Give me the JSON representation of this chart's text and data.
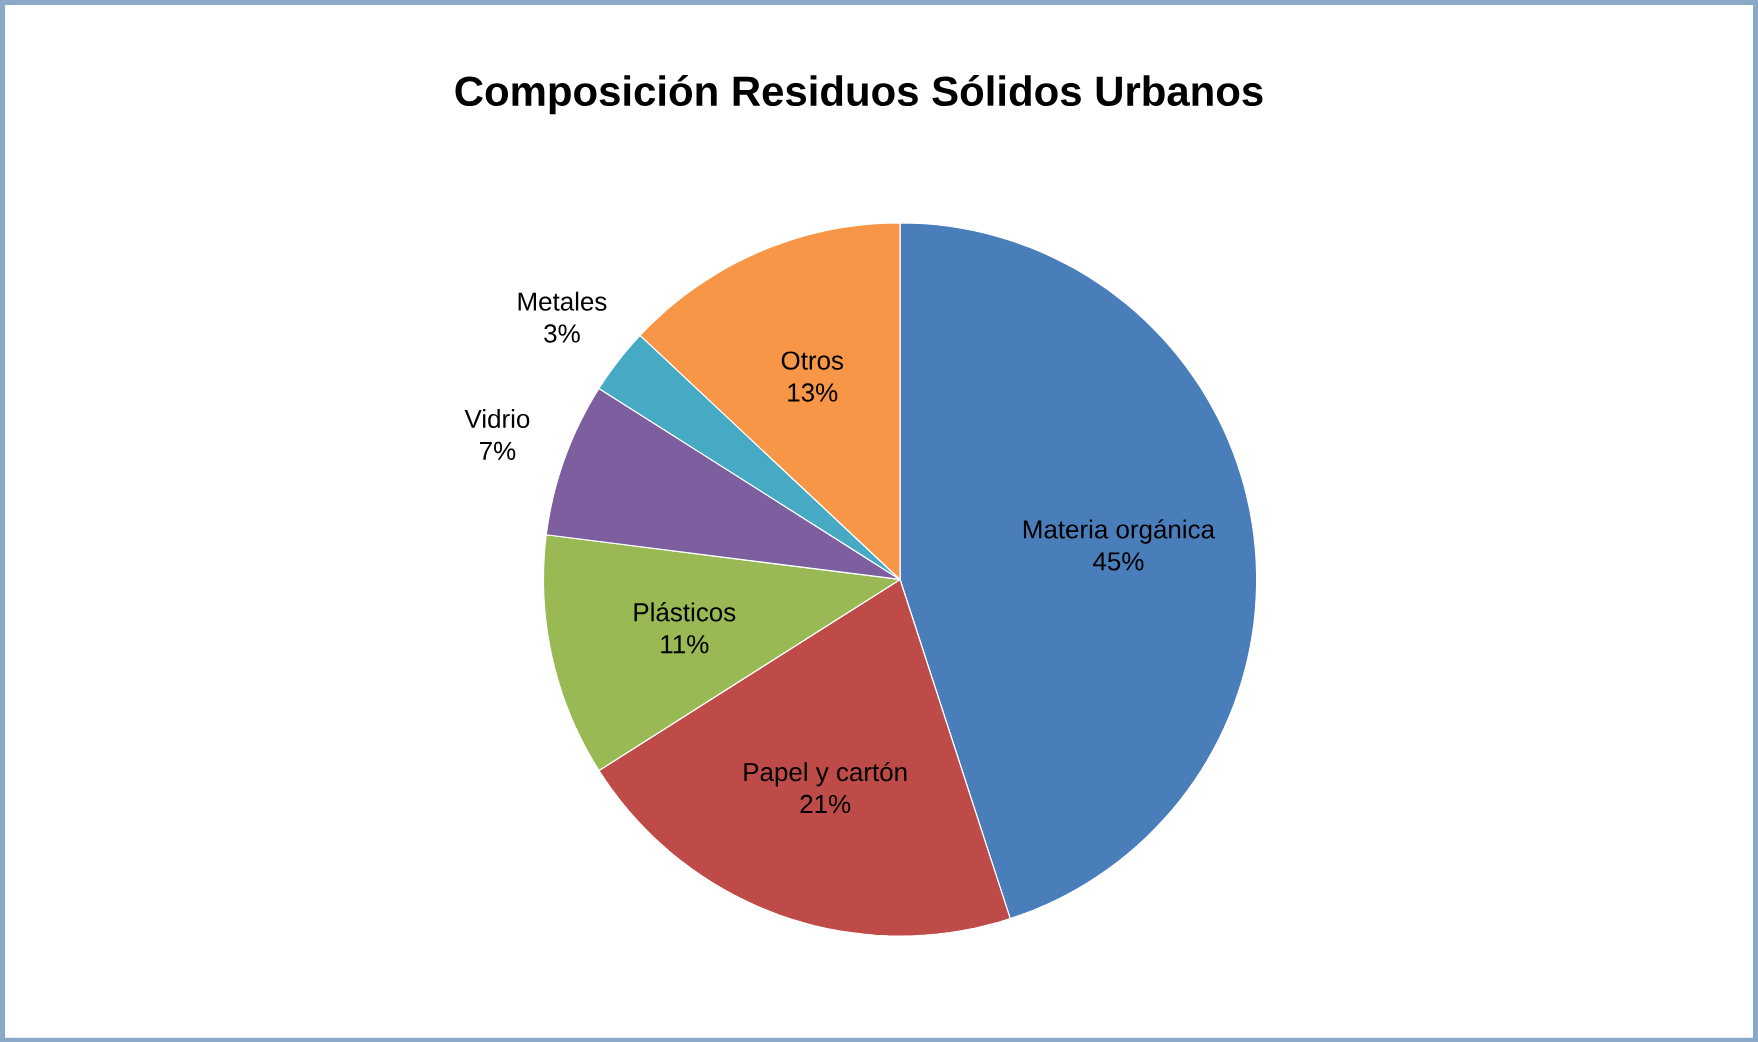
{
  "chart_data": {
    "type": "pie",
    "title": "Composición Residuos Sólidos Urbanos",
    "categories": [
      "Materia orgánica",
      "Papel y cartón",
      "Plásticos",
      "Vidrio",
      "Metales",
      "Otros"
    ],
    "values": [
      45,
      21,
      11,
      7,
      3,
      13
    ],
    "value_labels": [
      "45%",
      "21%",
      "11%",
      "7%",
      "3%",
      "13%"
    ],
    "colors": [
      "#4a7ebb",
      "#be4b48",
      "#98b954",
      "#7d5fa0",
      "#46aac5",
      "#f79646"
    ]
  }
}
